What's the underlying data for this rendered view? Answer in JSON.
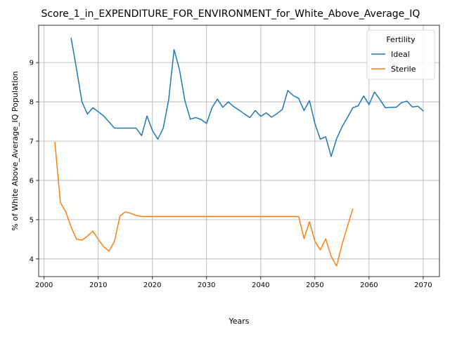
{
  "chart_data": {
    "type": "line",
    "title": "Score_1_in_EXPENDITURE_FOR_ENVIRONMENT_for_White_Above_Average_IQ",
    "xlabel": "Years",
    "ylabel": "% of White Above_Average_IQ Population",
    "xlim": [
      1999,
      2073
    ],
    "ylim": [
      3.55,
      9.95
    ],
    "xticks": [
      2000,
      2010,
      2020,
      2030,
      2040,
      2050,
      2060,
      2070
    ],
    "yticks": [
      4,
      5,
      6,
      7,
      8,
      9
    ],
    "grid": true,
    "legend": {
      "title": "Fertility",
      "placement": "top-right"
    },
    "colors": {
      "Ideal": "#1f77b4",
      "Sterile": "#ff7f0e"
    },
    "series": [
      {
        "name": "Ideal",
        "x": [
          2005,
          2006,
          2007,
          2008,
          2009,
          2010,
          2011,
          2012,
          2013,
          2014,
          2015,
          2016,
          2017,
          2018,
          2019,
          2020,
          2021,
          2022,
          2023,
          2024,
          2025,
          2026,
          2027,
          2028,
          2029,
          2030,
          2031,
          2032,
          2033,
          2034,
          2035,
          2036,
          2037,
          2038,
          2039,
          2040,
          2041,
          2042,
          2043,
          2044,
          2045,
          2046,
          2047,
          2048,
          2049,
          2050,
          2051,
          2052,
          2053,
          2054,
          2055,
          2056,
          2057,
          2058,
          2059,
          2060,
          2061,
          2062,
          2063,
          2064,
          2065,
          2066,
          2067,
          2068,
          2069,
          2070
        ],
        "values": [
          9.62,
          8.83,
          8.0,
          7.69,
          7.85,
          7.75,
          7.64,
          7.49,
          7.33,
          7.33,
          7.33,
          7.33,
          7.33,
          7.14,
          7.64,
          7.27,
          7.05,
          7.33,
          8.05,
          9.33,
          8.82,
          8.03,
          7.56,
          7.6,
          7.55,
          7.45,
          7.85,
          8.07,
          7.86,
          8.0,
          7.88,
          7.79,
          7.69,
          7.6,
          7.78,
          7.63,
          7.72,
          7.61,
          7.7,
          7.81,
          8.29,
          8.16,
          8.09,
          7.78,
          8.03,
          7.45,
          7.05,
          7.11,
          6.61,
          7.06,
          7.36,
          7.6,
          7.85,
          7.9,
          8.15,
          7.93,
          8.25,
          8.06,
          7.85,
          7.86,
          7.86,
          7.98,
          8.02,
          7.87,
          7.89,
          7.77
        ]
      },
      {
        "name": "Sterile",
        "x": [
          2002,
          2003,
          2004,
          2005,
          2006,
          2007,
          2008,
          2009,
          2010,
          2011,
          2012,
          2013,
          2014,
          2015,
          2016,
          2017,
          2018,
          2019,
          2020,
          2021,
          2022,
          2023,
          2024,
          2025,
          2026,
          2027,
          2028,
          2029,
          2030,
          2031,
          2032,
          2033,
          2034,
          2035,
          2036,
          2037,
          2038,
          2039,
          2040,
          2041,
          2042,
          2043,
          2044,
          2045,
          2046,
          2047,
          2048,
          2049,
          2050,
          2051,
          2052,
          2053,
          2054,
          2055,
          2056,
          2057
        ],
        "values": [
          6.97,
          5.44,
          5.2,
          4.81,
          4.5,
          4.48,
          4.58,
          4.71,
          4.5,
          4.31,
          4.2,
          4.45,
          5.09,
          5.2,
          5.16,
          5.11,
          5.08,
          5.08,
          5.08,
          5.08,
          5.08,
          5.08,
          5.08,
          5.08,
          5.08,
          5.08,
          5.08,
          5.08,
          5.08,
          5.08,
          5.08,
          5.08,
          5.08,
          5.08,
          5.08,
          5.08,
          5.08,
          5.08,
          5.08,
          5.08,
          5.08,
          5.08,
          5.08,
          5.08,
          5.08,
          5.08,
          4.52,
          4.95,
          4.45,
          4.23,
          4.51,
          4.07,
          3.82,
          4.36,
          4.83,
          5.27
        ]
      }
    ]
  }
}
